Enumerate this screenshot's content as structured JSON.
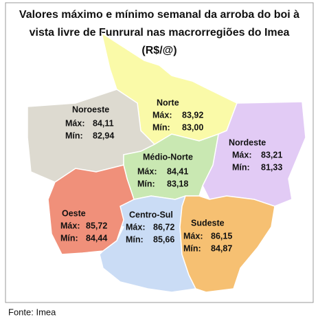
{
  "title": {
    "lines": [
      "Valores máximo e mínimo semanal da arroba do boi à",
      "vista livre de Funrural nas macrorregiões do Imea",
      "(R$/@)"
    ]
  },
  "regions": [
    {
      "name": "Noroeste",
      "max_label": "Máx:",
      "max": "84,11",
      "min_label": "Mín:",
      "min": "82,94"
    },
    {
      "name": "Norte",
      "max_label": "Máx:",
      "max": "83,92",
      "min_label": "Mín:",
      "min": "83,00"
    },
    {
      "name": "Nordeste",
      "max_label": "Máx:",
      "max": "83,21",
      "min_label": "Mín:",
      "min": "81,33"
    },
    {
      "name": "Médio-Norte",
      "max_label": "Máx:",
      "max": "84,41",
      "min_label": "Mín:",
      "min": "83,18"
    },
    {
      "name": "Oeste",
      "max_label": "Máx:",
      "max": "85,72",
      "min_label": "Mín:",
      "min": "84,44"
    },
    {
      "name": "Centro-Sul",
      "max_label": "Máx:",
      "max": "86,72",
      "min_label": "Mín:",
      "min": "85,66"
    },
    {
      "name": "Sudeste",
      "max_label": "Máx:",
      "max": "86,15",
      "min_label": "Mín:",
      "min": "84,87"
    }
  ],
  "source": "Fonte: Imea"
}
